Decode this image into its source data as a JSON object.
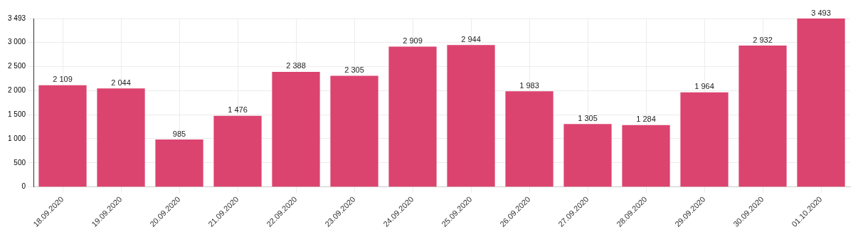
{
  "chart_data": {
    "type": "bar",
    "categories": [
      "18.09.2020",
      "19.09.2020",
      "20.09.2020",
      "21.09.2020",
      "22.09.2020",
      "23.09.2020",
      "24.09.2020",
      "25.09.2020",
      "26.09.2020",
      "27.09.2020",
      "28.09.2020",
      "29.09.2020",
      "30.09.2020",
      "01.10.2020"
    ],
    "values": [
      2109,
      2044,
      985,
      1476,
      2388,
      2305,
      2909,
      2944,
      1983,
      1305,
      1284,
      1964,
      2932,
      3493
    ],
    "value_labels": [
      "2 109",
      "2 044",
      "985",
      "1 476",
      "2 388",
      "2 305",
      "2 909",
      "2 944",
      "1 983",
      "1 305",
      "1 284",
      "1 964",
      "2 932",
      "3 493"
    ],
    "color": "#dc4470",
    "ylim": [
      0,
      3493
    ],
    "yticks": [
      {
        "value": 0,
        "label": "0"
      },
      {
        "value": 500,
        "label": "500"
      },
      {
        "value": 1000,
        "label": "1 000"
      },
      {
        "value": 1500,
        "label": "1 500"
      },
      {
        "value": 2000,
        "label": "2 000"
      },
      {
        "value": 2500,
        "label": "2 500"
      },
      {
        "value": 3000,
        "label": "3 000"
      },
      {
        "value": 3493,
        "label": "3 493"
      }
    ],
    "grid": true
  }
}
